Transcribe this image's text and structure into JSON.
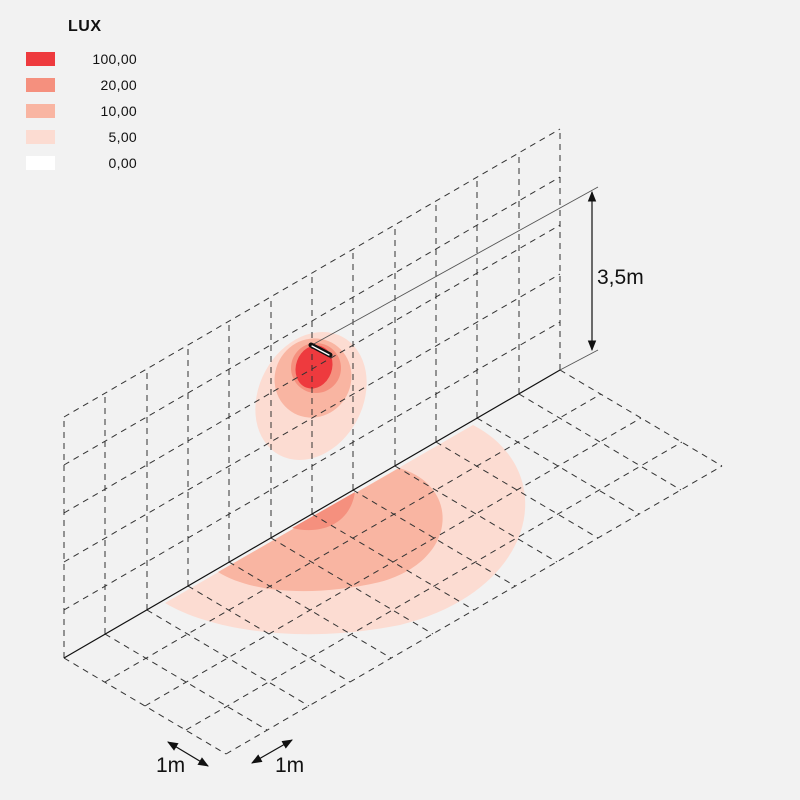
{
  "legend": {
    "title": "LUX",
    "items": [
      {
        "label": "100,00",
        "color": "#ee3a3e"
      },
      {
        "label": "20,00",
        "color": "#f5907e"
      },
      {
        "label": "10,00",
        "color": "#f9b5a2"
      },
      {
        "label": "5,00",
        "color": "#fcdcd2"
      },
      {
        "label": "0,00",
        "color": "#ffffff"
      }
    ]
  },
  "dimensions": {
    "height_label": "3,5m",
    "grid_x_label": "1m",
    "grid_y_label": "1m"
  },
  "fixture": {
    "name": "wall-luminaire",
    "color": "#111111"
  }
}
